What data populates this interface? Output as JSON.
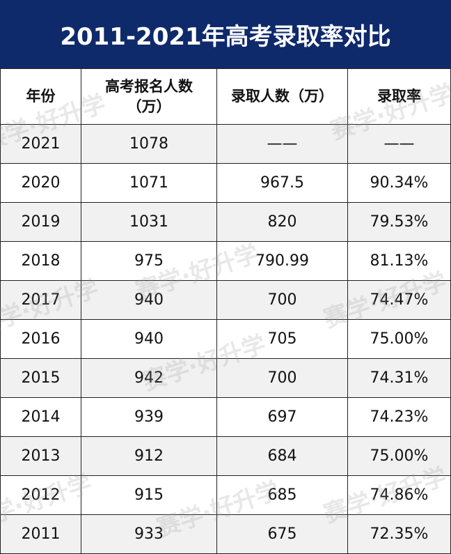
{
  "header": {
    "title": "2011-2021年高考录取率对比"
  },
  "watermark": "赛学·好升学",
  "table": {
    "columns": [
      "年份",
      "高考报名人数（万）",
      "录取人数（万）",
      "录取率"
    ],
    "rows": [
      [
        "2021",
        "1078",
        "——",
        "——"
      ],
      [
        "2020",
        "1071",
        "967.5",
        "90.34%"
      ],
      [
        "2019",
        "1031",
        "820",
        "79.53%"
      ],
      [
        "2018",
        "975",
        "790.99",
        "81.13%"
      ],
      [
        "2017",
        "940",
        "700",
        "74.47%"
      ],
      [
        "2016",
        "940",
        "705",
        "75.00%"
      ],
      [
        "2015",
        "942",
        "700",
        "74.31%"
      ],
      [
        "2014",
        "939",
        "697",
        "74.23%"
      ],
      [
        "2013",
        "912",
        "684",
        "75.00%"
      ],
      [
        "2012",
        "915",
        "685",
        "74.86%"
      ],
      [
        "2011",
        "933",
        "675",
        "72.35%"
      ]
    ]
  }
}
